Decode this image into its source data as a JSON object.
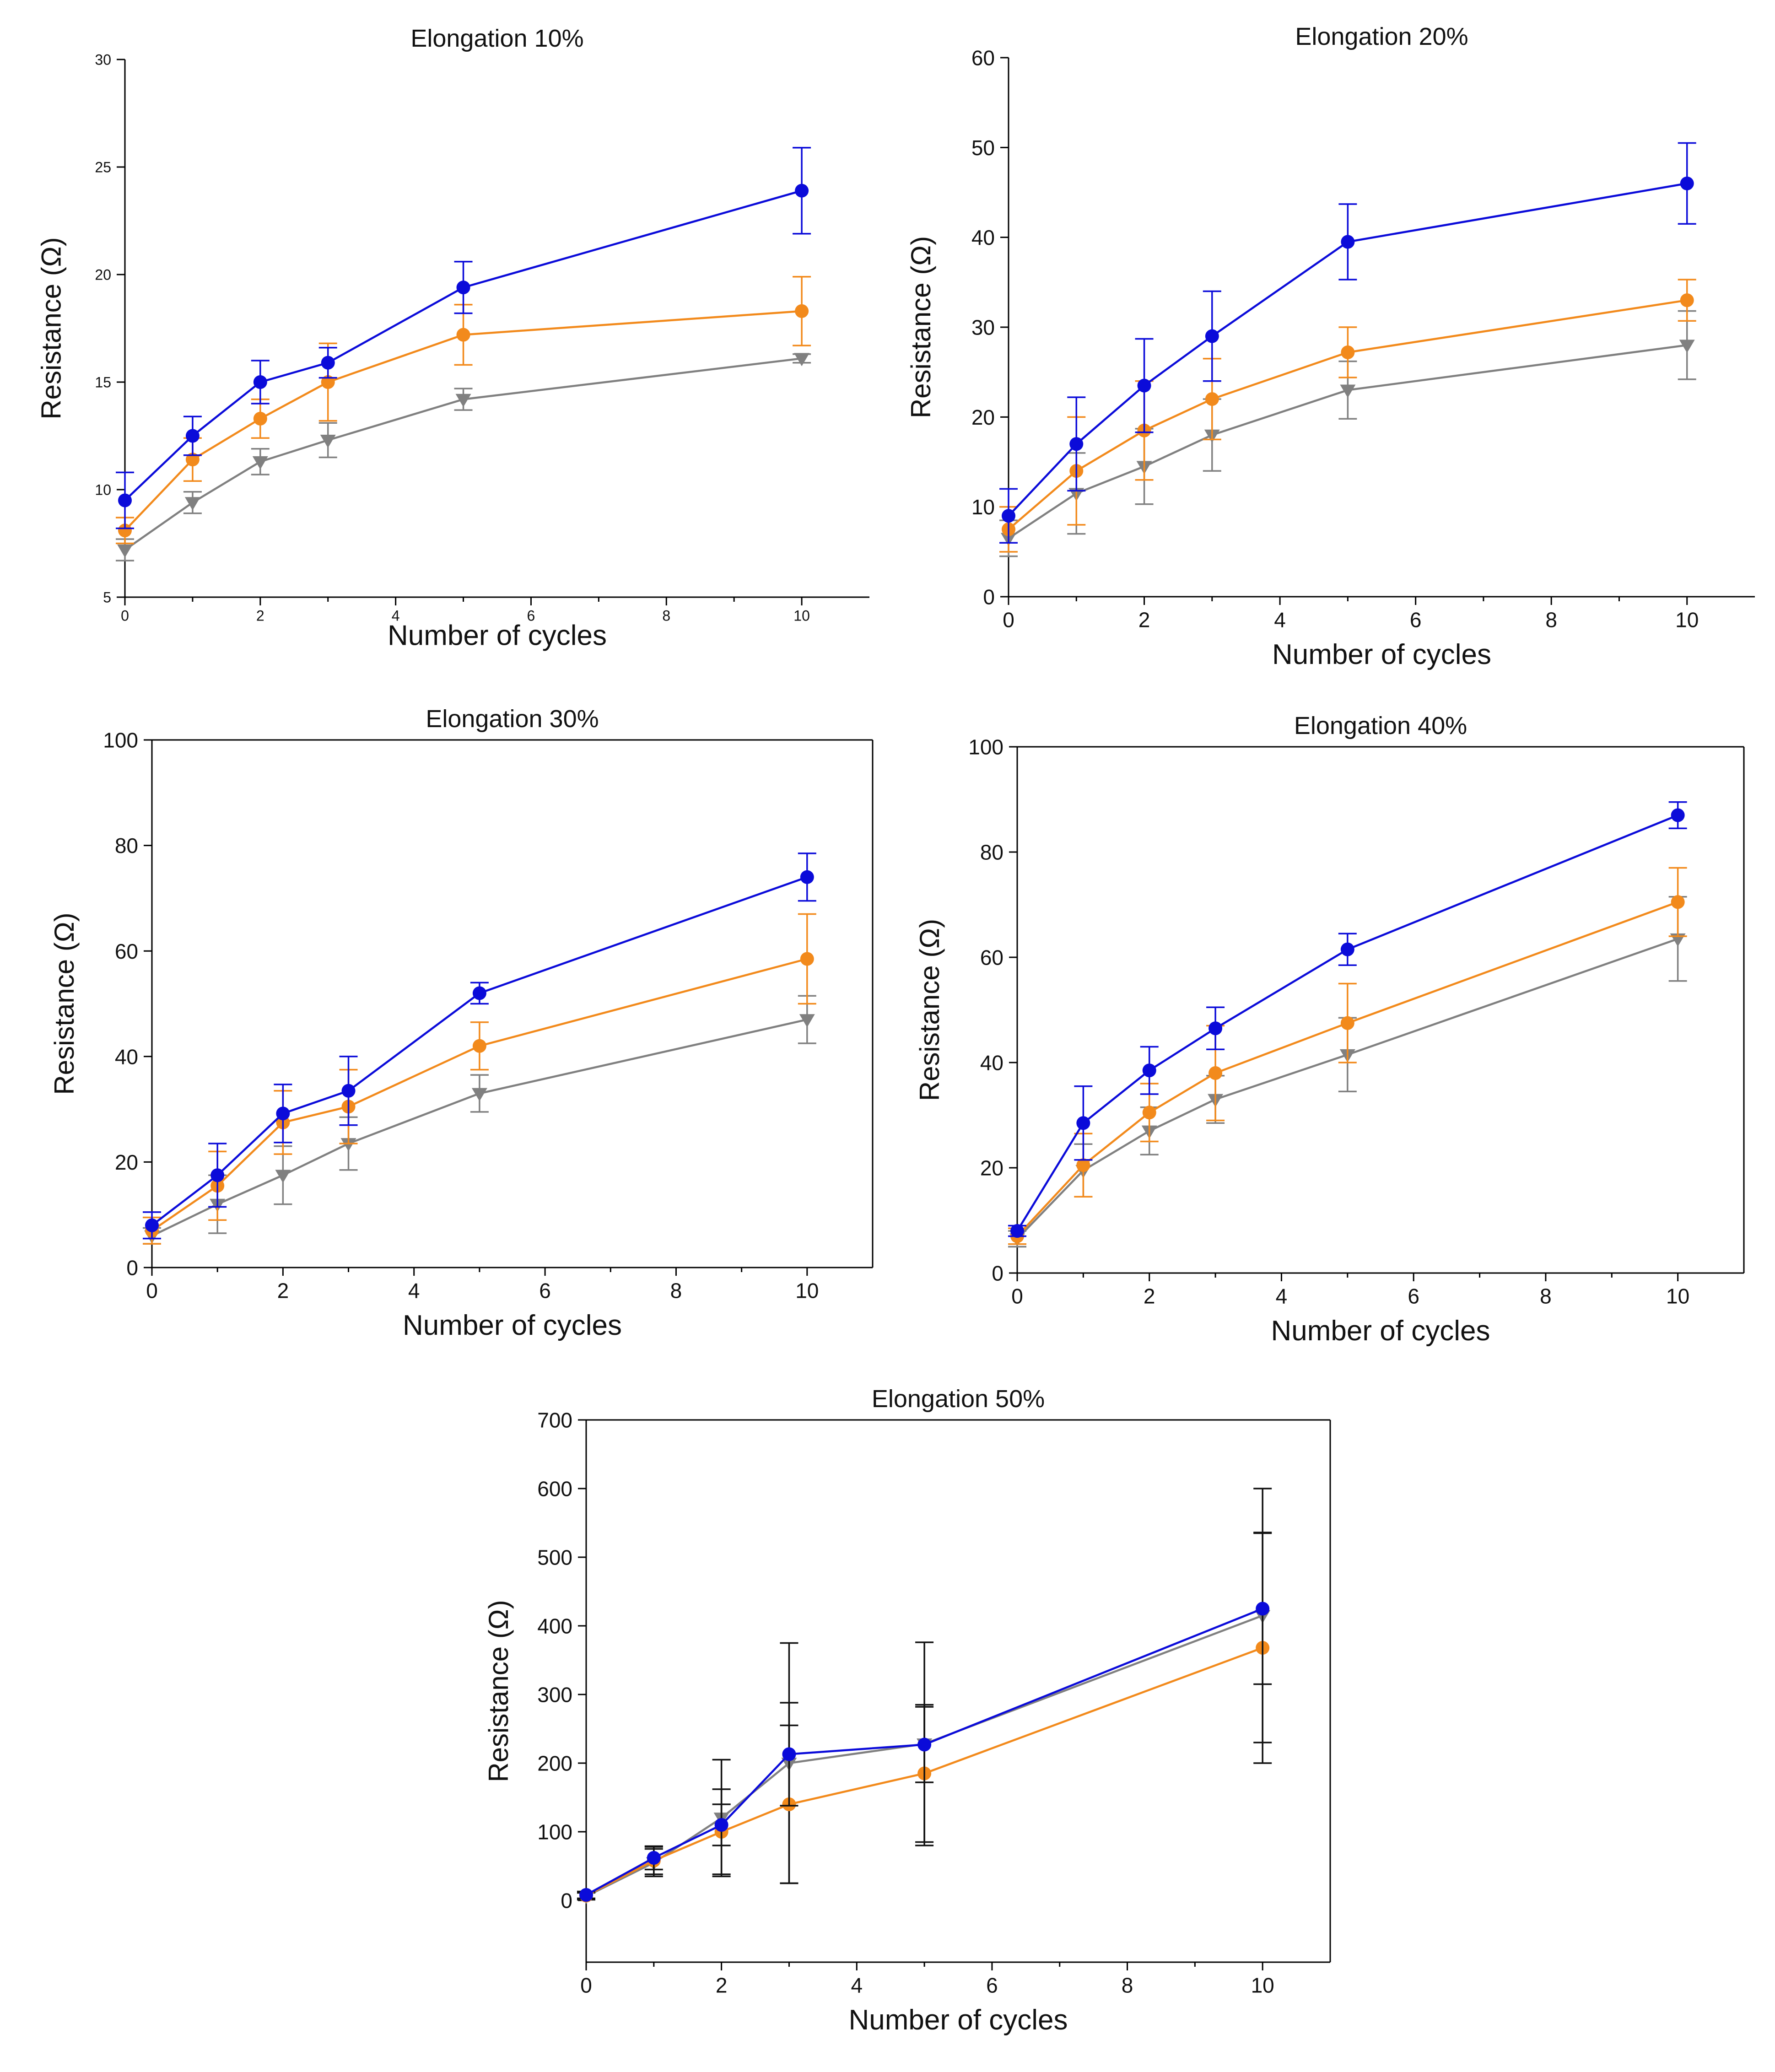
{
  "chart_data": [
    {
      "type": "line",
      "title": "Elongation 10%",
      "xlabel": "Number of cycles",
      "ylabel": "Resistance (Ω)",
      "xlim": [
        0,
        11
      ],
      "ylim": [
        5,
        30
      ],
      "xticks": [
        0,
        2,
        4,
        6,
        8,
        10
      ],
      "yticks": [
        5,
        10,
        15,
        20,
        25,
        30
      ],
      "x": [
        0,
        1,
        2,
        3,
        5,
        10
      ],
      "series": [
        {
          "name": "series-blue",
          "color": "#0b0bd9",
          "marker": "circle",
          "values": [
            9.5,
            12.5,
            15.0,
            15.9,
            19.4,
            23.9
          ],
          "errors": [
            1.3,
            0.9,
            1.0,
            0.7,
            1.2,
            2.0
          ]
        },
        {
          "name": "series-orange",
          "color": "#f28a1c",
          "marker": "circle",
          "values": [
            8.1,
            11.4,
            13.3,
            15.0,
            17.2,
            18.3
          ],
          "errors": [
            0.6,
            1.0,
            0.9,
            1.8,
            1.4,
            1.6
          ]
        },
        {
          "name": "series-gray",
          "color": "#808080",
          "marker": "triangle",
          "values": [
            7.2,
            9.4,
            11.3,
            12.3,
            14.2,
            16.1
          ],
          "errors": [
            0.5,
            0.5,
            0.6,
            0.8,
            0.5,
            0.2
          ]
        }
      ]
    },
    {
      "type": "line",
      "title": "Elongation 20%",
      "xlabel": "Number of cycles",
      "ylabel": "Resistance (Ω)",
      "xlim": [
        0,
        11
      ],
      "ylim": [
        0,
        60
      ],
      "xticks": [
        0,
        2,
        4,
        6,
        8,
        10
      ],
      "yticks": [
        0,
        10,
        20,
        30,
        40,
        50,
        60
      ],
      "x": [
        0,
        1,
        2,
        3,
        5,
        10
      ],
      "series": [
        {
          "name": "series-blue",
          "color": "#0b0bd9",
          "marker": "circle",
          "values": [
            9.0,
            17.0,
            23.5,
            29.0,
            39.5,
            46.0
          ],
          "errors": [
            3.0,
            5.2,
            5.2,
            5.0,
            4.2,
            4.5
          ]
        },
        {
          "name": "series-orange",
          "color": "#f28a1c",
          "marker": "circle",
          "values": [
            7.5,
            14.0,
            18.5,
            22.0,
            27.2,
            33.0
          ],
          "errors": [
            2.5,
            6.0,
            5.5,
            4.5,
            2.8,
            2.3
          ]
        },
        {
          "name": "series-gray",
          "color": "#808080",
          "marker": "triangle",
          "values": [
            6.5,
            11.5,
            14.5,
            18.0,
            23.0,
            28.0
          ],
          "errors": [
            2.0,
            4.5,
            4.2,
            4.0,
            3.2,
            3.8
          ]
        }
      ]
    },
    {
      "type": "line",
      "title": "Elongation 30%",
      "xlabel": "Number of cycles",
      "ylabel": "Resistance (Ω)",
      "xlim": [
        0,
        11
      ],
      "ylim": [
        0,
        100
      ],
      "xticks": [
        0,
        2,
        4,
        6,
        8,
        10
      ],
      "yticks": [
        0,
        20,
        40,
        60,
        80,
        100
      ],
      "x": [
        0,
        1,
        2,
        3,
        5,
        10
      ],
      "series": [
        {
          "name": "series-blue",
          "color": "#0b0bd9",
          "marker": "circle",
          "values": [
            8.0,
            17.5,
            29.2,
            33.5,
            52.0,
            74.0
          ],
          "errors": [
            2.5,
            6.0,
            5.5,
            6.5,
            2.0,
            4.5
          ]
        },
        {
          "name": "series-orange",
          "color": "#f28a1c",
          "marker": "circle",
          "values": [
            7.0,
            15.5,
            27.5,
            30.5,
            42.0,
            58.5
          ],
          "errors": [
            2.5,
            6.5,
            6.0,
            7.0,
            4.5,
            8.5
          ]
        },
        {
          "name": "series-gray",
          "color": "#808080",
          "marker": "triangle",
          "values": [
            6.0,
            12.0,
            17.5,
            23.5,
            33.0,
            47.0
          ],
          "errors": [
            1.5,
            5.5,
            5.5,
            5.0,
            3.5,
            4.5
          ]
        }
      ]
    },
    {
      "type": "line",
      "title": "Elongation 40%",
      "xlabel": "Number of cycles",
      "ylabel": "Resistance (Ω)",
      "xlim": [
        0,
        11
      ],
      "ylim": [
        0,
        100
      ],
      "xticks": [
        0,
        2,
        4,
        6,
        8,
        10
      ],
      "yticks": [
        0,
        20,
        40,
        60,
        80,
        100
      ],
      "x": [
        0,
        1,
        2,
        3,
        5,
        10
      ],
      "series": [
        {
          "name": "series-blue",
          "color": "#0b0bd9",
          "marker": "circle",
          "values": [
            8.0,
            28.5,
            38.5,
            46.5,
            61.5,
            87.0
          ],
          "errors": [
            1.0,
            7.0,
            4.5,
            4.0,
            3.0,
            2.5
          ]
        },
        {
          "name": "series-orange",
          "color": "#f28a1c",
          "marker": "circle",
          "values": [
            7.0,
            20.5,
            30.5,
            38.0,
            47.5,
            70.5
          ],
          "errors": [
            1.5,
            6.0,
            5.5,
            9.0,
            7.5,
            6.5
          ]
        },
        {
          "name": "series-gray",
          "color": "#808080",
          "marker": "triangle",
          "values": [
            6.5,
            19.5,
            27.0,
            33.0,
            41.5,
            63.5
          ],
          "errors": [
            1.5,
            5.0,
            4.5,
            4.5,
            7.0,
            8.0
          ]
        }
      ]
    },
    {
      "type": "line",
      "title": "Elongation 50%",
      "xlabel": "Number of cycles",
      "ylabel": "Resistance (Ω)",
      "xlim": [
        0,
        11
      ],
      "ylim": [
        -90,
        700
      ],
      "xticks": [
        0,
        2,
        4,
        6,
        8,
        10
      ],
      "yticks": [
        0,
        100,
        200,
        300,
        400,
        500,
        600,
        700
      ],
      "x": [
        0,
        1,
        2,
        3,
        5,
        10
      ],
      "series": [
        {
          "name": "series-blue",
          "color": "#0b0bd9",
          "marker": "circle",
          "values": [
            8,
            62,
            110,
            213,
            227,
            425
          ],
          "errors": [
            5,
            17,
            30,
            75,
            55,
            110
          ]
        },
        {
          "name": "series-orange",
          "color": "#f28a1c",
          "marker": "circle",
          "values": [
            7,
            58,
            100,
            140,
            185,
            368
          ],
          "errors": [
            5,
            20,
            62,
            115,
            100,
            168
          ]
        },
        {
          "name": "series-gray",
          "color": "#808080",
          "marker": "triangle",
          "values": [
            6,
            55,
            120,
            200,
            228,
            415
          ],
          "errors": [
            5,
            20,
            85,
            175,
            148,
            185
          ]
        }
      ],
      "error_bar_color": "#111111"
    }
  ]
}
